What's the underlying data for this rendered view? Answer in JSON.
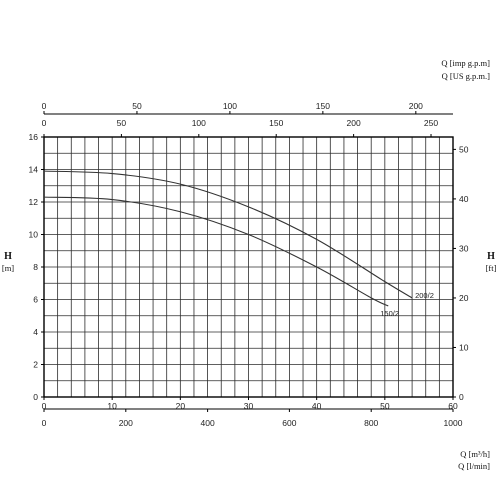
{
  "chart_data": {
    "type": "line",
    "title": "",
    "unit_labels": {
      "imp_gpm": "Q [imp g.p.m]",
      "us_gpm": "Q [US g.p.m.]",
      "m3h": "Q [m³/h]",
      "lmin": "Q [l/min]",
      "h_m_name": "H",
      "h_m_unit": "[m]",
      "h_ft_name": "H",
      "h_ft_unit": "[ft]"
    },
    "axes": {
      "x_m3h": {
        "range": [
          0,
          60
        ],
        "ticks": [
          0,
          10,
          20,
          30,
          40,
          50,
          60
        ]
      },
      "x_lmin": {
        "range": [
          0,
          1000
        ],
        "ticks": [
          0,
          200,
          400,
          600,
          800,
          1000
        ]
      },
      "x_us_gpm": {
        "range": [
          0,
          264.2
        ],
        "ticks": [
          0,
          50,
          100,
          150,
          200,
          250
        ]
      },
      "x_imp_gpm": {
        "range": [
          0,
          220
        ],
        "ticks": [
          0,
          50,
          100,
          150,
          200
        ]
      },
      "y_m": {
        "range": [
          0,
          16
        ],
        "ticks": [
          0,
          2,
          4,
          6,
          8,
          10,
          12,
          14,
          16
        ]
      },
      "y_ft": {
        "range": [
          0,
          52.5
        ],
        "ticks": [
          0,
          10,
          20,
          30,
          40,
          50
        ]
      }
    },
    "grid": true,
    "series": [
      {
        "name": "200/2",
        "x": [
          0,
          10,
          20,
          30,
          40,
          50,
          54
        ],
        "y": [
          13.9,
          13.75,
          13.1,
          11.7,
          9.7,
          7.1,
          6.1
        ]
      },
      {
        "name": "150/2",
        "x": [
          0,
          10,
          20,
          30,
          40,
          48,
          50.5
        ],
        "y": [
          12.3,
          12.15,
          11.4,
          10.0,
          8.0,
          6.1,
          5.6
        ]
      }
    ]
  }
}
